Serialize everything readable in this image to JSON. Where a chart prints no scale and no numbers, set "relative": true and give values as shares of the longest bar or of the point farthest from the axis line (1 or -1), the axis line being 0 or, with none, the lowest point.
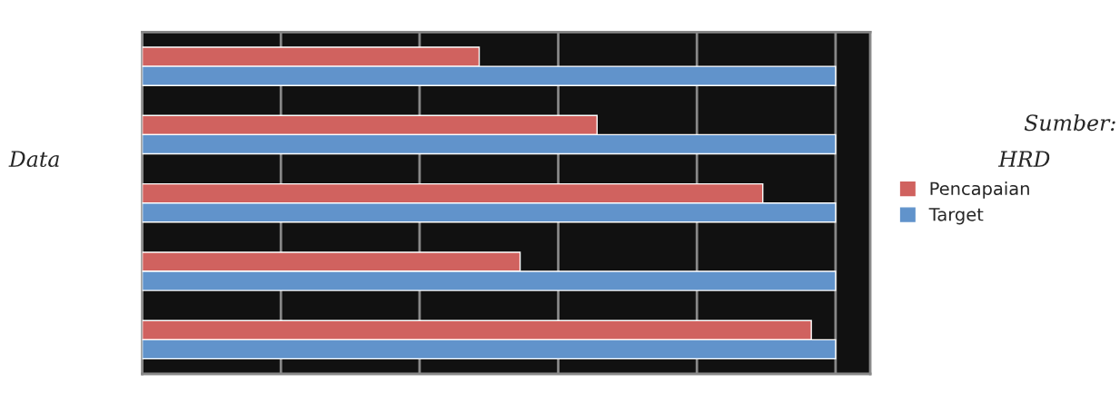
{
  "chart_data": {
    "type": "bar",
    "orientation": "horizontal",
    "relative": true,
    "categories": [
      null,
      null,
      null,
      null,
      null
    ],
    "series": [
      {
        "name": "Pencapaian",
        "color": "#d0625f",
        "values": [
          0.486,
          0.656,
          0.895,
          0.545,
          0.965
        ]
      },
      {
        "name": "Target",
        "color": "#6193cb",
        "values": [
          1,
          1,
          1,
          1,
          1
        ]
      }
    ],
    "grid": "x",
    "legend": "right",
    "annotations": [
      "Data",
      "Sumber:",
      "HRD"
    ]
  }
}
